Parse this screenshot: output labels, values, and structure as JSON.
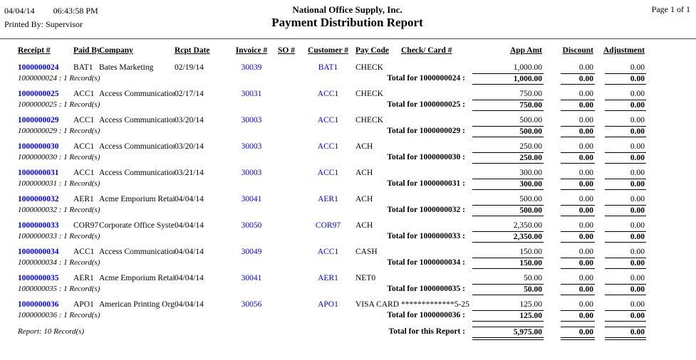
{
  "page": {
    "date": "04/04/14",
    "time": "06:43:58 PM",
    "printed_by": "Printed By: Supervisor",
    "company_name": "National Office Supply, Inc.",
    "report_title": "Payment Distribution Report",
    "page_info": "Page 1 of 1"
  },
  "colors": {
    "link_blue": "#0000ff",
    "text_black": "#000000"
  },
  "table": {
    "columns": [
      "Receipt #",
      "Paid By",
      "Company",
      "Rcpt Date",
      "Invoice #",
      "SO #",
      "Customer #",
      "Pay Code",
      "Check/ Card #",
      "App Amt",
      "Discount",
      "Adjustment"
    ],
    "groups": [
      {
        "receipt": "1000000024",
        "paid_by": "BAT1",
        "company": "Bates Marketing",
        "rcpt_date": "02/19/14",
        "invoice": "30039",
        "so": "",
        "customer": "BAT1",
        "pay_code": "CHECK",
        "check_card": "",
        "app_amt": "1,000.00",
        "discount": "0.00",
        "adjustment": "0.00",
        "record_count": "1000000024 : 1 Record(s)",
        "total_label": "Total for 1000000024 :",
        "total_app_amt": "1,000.00",
        "total_discount": "0.00",
        "total_adjustment": "0.00"
      },
      {
        "receipt": "1000000025",
        "paid_by": "ACC1",
        "company": "Access Communication",
        "rcpt_date": "02/17/14",
        "invoice": "30031",
        "so": "",
        "customer": "ACC1",
        "pay_code": "CHECK",
        "check_card": "",
        "app_amt": "750.00",
        "discount": "0.00",
        "adjustment": "0.00",
        "record_count": "1000000025 : 1 Record(s)",
        "total_label": "Total for 1000000025 :",
        "total_app_amt": "750.00",
        "total_discount": "0.00",
        "total_adjustment": "0.00"
      },
      {
        "receipt": "1000000029",
        "paid_by": "ACC1",
        "company": "Access Communication",
        "rcpt_date": "03/20/14",
        "invoice": "30003",
        "so": "",
        "customer": "ACC1",
        "pay_code": "CHECK",
        "check_card": "",
        "app_amt": "500.00",
        "discount": "0.00",
        "adjustment": "0.00",
        "record_count": "1000000029 : 1 Record(s)",
        "total_label": "Total for 1000000029 :",
        "total_app_amt": "500.00",
        "total_discount": "0.00",
        "total_adjustment": "0.00"
      },
      {
        "receipt": "1000000030",
        "paid_by": "ACC1",
        "company": "Access Communication",
        "rcpt_date": "03/20/14",
        "invoice": "30003",
        "so": "",
        "customer": "ACC1",
        "pay_code": "ACH",
        "check_card": "",
        "app_amt": "250.00",
        "discount": "0.00",
        "adjustment": "0.00",
        "record_count": "1000000030 : 1 Record(s)",
        "total_label": "Total for 1000000030 :",
        "total_app_amt": "250.00",
        "total_discount": "0.00",
        "total_adjustment": "0.00"
      },
      {
        "receipt": "1000000031",
        "paid_by": "ACC1",
        "company": "Access Communication",
        "rcpt_date": "03/21/14",
        "invoice": "30003",
        "so": "",
        "customer": "ACC1",
        "pay_code": "ACH",
        "check_card": "",
        "app_amt": "300.00",
        "discount": "0.00",
        "adjustment": "0.00",
        "record_count": "1000000031 : 1 Record(s)",
        "total_label": "Total for 1000000031 :",
        "total_app_amt": "300.00",
        "total_discount": "0.00",
        "total_adjustment": "0.00"
      },
      {
        "receipt": "1000000032",
        "paid_by": "AER1",
        "company": "Acme Emporium Retail",
        "rcpt_date": "04/04/14",
        "invoice": "30041",
        "so": "",
        "customer": "AER1",
        "pay_code": "ACH",
        "check_card": "",
        "app_amt": "500.00",
        "discount": "0.00",
        "adjustment": "0.00",
        "record_count": "1000000032 : 1 Record(s)",
        "total_label": "Total for 1000000032 :",
        "total_app_amt": "500.00",
        "total_discount": "0.00",
        "total_adjustment": "0.00"
      },
      {
        "receipt": "1000000033",
        "paid_by": "COR97",
        "company": "Corporate Office System",
        "rcpt_date": "04/04/14",
        "invoice": "30050",
        "so": "",
        "customer": "COR97",
        "pay_code": "ACH",
        "check_card": "",
        "app_amt": "2,350.00",
        "discount": "0.00",
        "adjustment": "0.00",
        "record_count": "1000000033 : 1 Record(s)",
        "total_label": "Total for 1000000033 :",
        "total_app_amt": "2,350.00",
        "total_discount": "0.00",
        "total_adjustment": "0.00"
      },
      {
        "receipt": "1000000034",
        "paid_by": "ACC1",
        "company": "Access Communication",
        "rcpt_date": "04/04/14",
        "invoice": "30049",
        "so": "",
        "customer": "ACC1",
        "pay_code": "CASH",
        "check_card": "",
        "app_amt": "150.00",
        "discount": "0.00",
        "adjustment": "0.00",
        "record_count": "1000000034 : 1 Record(s)",
        "total_label": "Total for 1000000034 :",
        "total_app_amt": "150.00",
        "total_discount": "0.00",
        "total_adjustment": "0.00"
      },
      {
        "receipt": "1000000035",
        "paid_by": "AER1",
        "company": "Acme Emporium Retail",
        "rcpt_date": "04/04/14",
        "invoice": "30041",
        "so": "",
        "customer": "AER1",
        "pay_code": "NET0",
        "check_card": "",
        "app_amt": "50.00",
        "discount": "0.00",
        "adjustment": "0.00",
        "record_count": "1000000035 : 1 Record(s)",
        "total_label": "Total for 1000000035 :",
        "total_app_amt": "50.00",
        "total_discount": "0.00",
        "total_adjustment": "0.00"
      },
      {
        "receipt": "1000000036",
        "paid_by": "APO1",
        "company": "American Printing Orga",
        "rcpt_date": "04/04/14",
        "invoice": "30056",
        "so": "",
        "customer": "APO1",
        "pay_code": "VISA CARD",
        "check_card": "*************5-25",
        "app_amt": "125.00",
        "discount": "0.00",
        "adjustment": "0.00",
        "record_count": "1000000036 : 1 Record(s)",
        "total_label": "Total for 1000000036 :",
        "total_app_amt": "125.00",
        "total_discount": "0.00",
        "total_adjustment": "0.00"
      }
    ],
    "report_footer": {
      "record_count": "Report: 10 Record(s)",
      "total_label": "Total for this Report :",
      "app_amt": "5,975.00",
      "discount": "0.00",
      "adjustment": "0.00"
    }
  }
}
